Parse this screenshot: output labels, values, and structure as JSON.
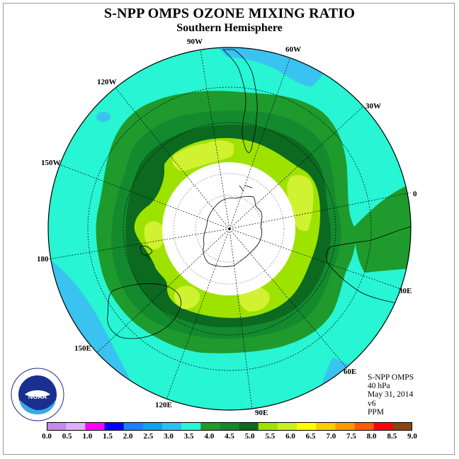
{
  "title": "S-NPP OMPS OZONE MIXING RATIO",
  "subtitle": "Southern Hemisphere",
  "longitude_labels": {
    "lon_90w": "90W",
    "lon_60w": "60W",
    "lon_30w": "30W",
    "lon_0": "0",
    "lon_30e": "30E",
    "lon_60e": "60E",
    "lon_90e": "90E",
    "lon_120e": "120E",
    "lon_150e": "150E",
    "lon_180": "180",
    "lon_150w": "150W",
    "lon_120w": "120W"
  },
  "info": {
    "instrument": "S-NPP OMPS",
    "level": "40 hPa",
    "date": "May 31, 2014",
    "version": "v6",
    "units": "PPM"
  },
  "colorbar": {
    "labels": [
      "0.0",
      "0.5",
      "1.0",
      "1.5",
      "2.0",
      "2.5",
      "3.0",
      "3.5",
      "4.0",
      "4.5",
      "5.0",
      "5.5",
      "6.0",
      "6.5",
      "7.0",
      "7.5",
      "8.0",
      "8.5",
      "9.0"
    ],
    "colors": [
      "#c488f2",
      "#dbb0f5",
      "#ff00ff",
      "#0000ff",
      "#1e7fff",
      "#14a0f0",
      "#2cc0f2",
      "#27f5d3",
      "#1f9a2d",
      "#138a2e",
      "#0b6a20",
      "#9ee200",
      "#c8f21c",
      "#ffff00",
      "#ffcc00",
      "#ff9900",
      "#ff5a00",
      "#ff0000",
      "#8b4513"
    ]
  },
  "logo": {
    "text": "NOAA",
    "ring_text": "NATIONAL OCEANIC AND ATMOSPHERIC ADMINISTRATION · U.S. DEPARTMENT OF COMMERCE"
  },
  "map_colors": {
    "band_3_0_3_5": "#3ac3f0",
    "band_3_5_4_0": "#27f5d3",
    "band_4_0_4_5": "#1f9a2d",
    "band_4_5_5_0": "#138a2e",
    "band_5_0_5_5": "#0b6a20",
    "band_5_5_6_0": "#9ee200",
    "band_6_0_6_5": "#d0f230",
    "pole_no_data": "#ffffff"
  }
}
